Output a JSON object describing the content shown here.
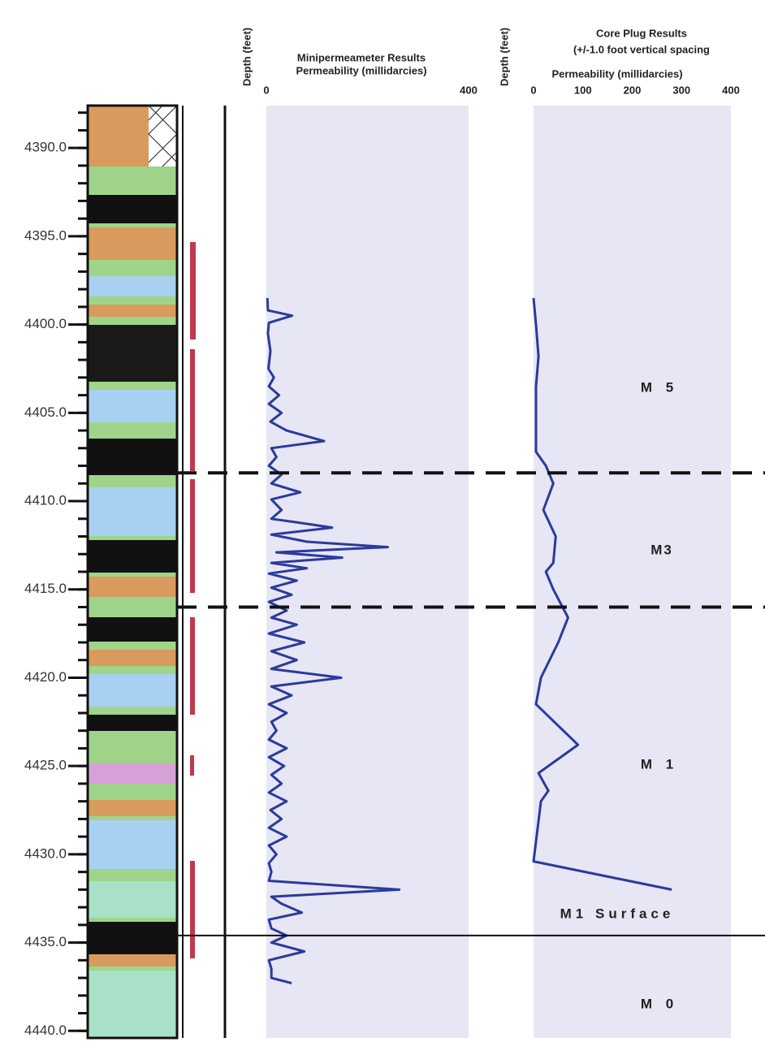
{
  "chart_data": {
    "type": "line",
    "ylabel": "Depth (feet)",
    "ylim": [
      4387.6,
      4440.4
    ],
    "yticks": [
      {
        "value": 4390,
        "label": "4390.0"
      },
      {
        "value": 4395,
        "label": "4395.0"
      },
      {
        "value": 4400,
        "label": "4400.0"
      },
      {
        "value": 4405,
        "label": "4405.0"
      },
      {
        "value": 4410,
        "label": "4410.0"
      },
      {
        "value": 4415,
        "label": "4415.0"
      },
      {
        "value": 4420,
        "label": "4420.0"
      },
      {
        "value": 4425,
        "label": "4425.0"
      },
      {
        "value": 4430,
        "label": "4430.0"
      },
      {
        "value": 4435,
        "label": "4435.0"
      },
      {
        "value": 4440,
        "label": "4440.0"
      }
    ],
    "panels": [
      {
        "title": [
          "Minipermeameter Results"
        ],
        "xlabel": "Permeability (millidarcies)",
        "xlim": [
          0,
          400
        ],
        "xticks": [
          0,
          400
        ],
        "band_color": "#e6e6f4",
        "series": [
          {
            "color": "#2b3a9c",
            "depth": [
              4398.5,
              4399.2,
              4399.5,
              4399.9,
              4400.5,
              4401.5,
              4402.5,
              4403,
              4403.5,
              4404,
              4404.5,
              4405,
              4405.5,
              4406,
              4406.6,
              4407,
              4407.5,
              4408,
              4408.5,
              4409,
              4409.5,
              4409.9,
              4410.5,
              4411,
              4411.2,
              4411.5,
              4411.9,
              4412.3,
              4412.6,
              4412.9,
              4413.2,
              4413.5,
              4413.8,
              4414.1,
              4414.5,
              4414.9,
              4415.3,
              4415.7,
              4416.2,
              4416.6,
              4417,
              4417.5,
              4418,
              4418.5,
              4419,
              4419.5,
              4420,
              4420.5,
              4421,
              4421.5,
              4422,
              4422.5,
              4423,
              4423.5,
              4424,
              4424.5,
              4425,
              4425.5,
              4426,
              4426.5,
              4427,
              4427.5,
              4428,
              4428.5,
              4429,
              4429.5,
              4430,
              4430.5,
              4431,
              4431.5,
              4432,
              4432.4,
              4432.8,
              4433.3,
              4433.7,
              4434.2,
              4434.6,
              4435,
              4435.5,
              4436,
              4436.5,
              4437,
              4437.3
            ],
            "values": [
              2,
              3,
              51,
              5,
              3,
              8,
              4,
              15,
              5,
              25,
              5,
              30,
              8,
              40,
              114,
              10,
              20,
              5,
              30,
              10,
              67,
              10,
              30,
              10,
              60,
              130,
              10,
              80,
              240,
              20,
              150,
              10,
              80,
              5,
              60,
              10,
              50,
              5,
              40,
              10,
              60,
              5,
              75,
              10,
              60,
              10,
              148,
              10,
              50,
              5,
              40,
              10,
              20,
              5,
              40,
              5,
              35,
              10,
              30,
              5,
              40,
              8,
              30,
              5,
              40,
              5,
              20,
              5,
              10,
              5,
              263,
              10,
              30,
              70,
              5,
              10,
              40,
              10,
              75,
              5,
              10,
              10,
              50
            ]
          }
        ]
      },
      {
        "title": [
          "Core Plug Results",
          "(+/-1.0 foot vertical spacing"
        ],
        "xlabel": "Permeability (millidarcies)",
        "xlim": [
          0,
          400
        ],
        "xticks": [
          0,
          100,
          200,
          300,
          400
        ],
        "band_color": "#e6e6f4",
        "series": [
          {
            "color": "#2b3a9c",
            "depth": [
              4398.5,
              4400,
              4401.8,
              4403.5,
              4405,
              4407.2,
              4408,
              4409,
              4410.5,
              4412,
              4413.5,
              4414,
              4415,
              4416.6,
              4418,
              4420,
              4421.5,
              4423.8,
              4425.4,
              4426.4,
              4427,
              4430.4,
              4432
            ],
            "values": [
              0,
              5,
              10,
              5,
              5,
              5,
              25,
              40,
              20,
              45,
              40,
              25,
              40,
              70,
              50,
              15,
              5,
              90,
              10,
              30,
              15,
              0,
              280
            ]
          }
        ]
      }
    ],
    "boundaries": [
      {
        "depth": 4408.4,
        "style": "dashed"
      },
      {
        "depth": 4416.0,
        "style": "dashed"
      },
      {
        "depth": 4434.6,
        "style": "solid"
      }
    ],
    "zones": [
      "M 5",
      "M3",
      "M 1",
      "M1 Surface",
      "M 0"
    ]
  }
}
